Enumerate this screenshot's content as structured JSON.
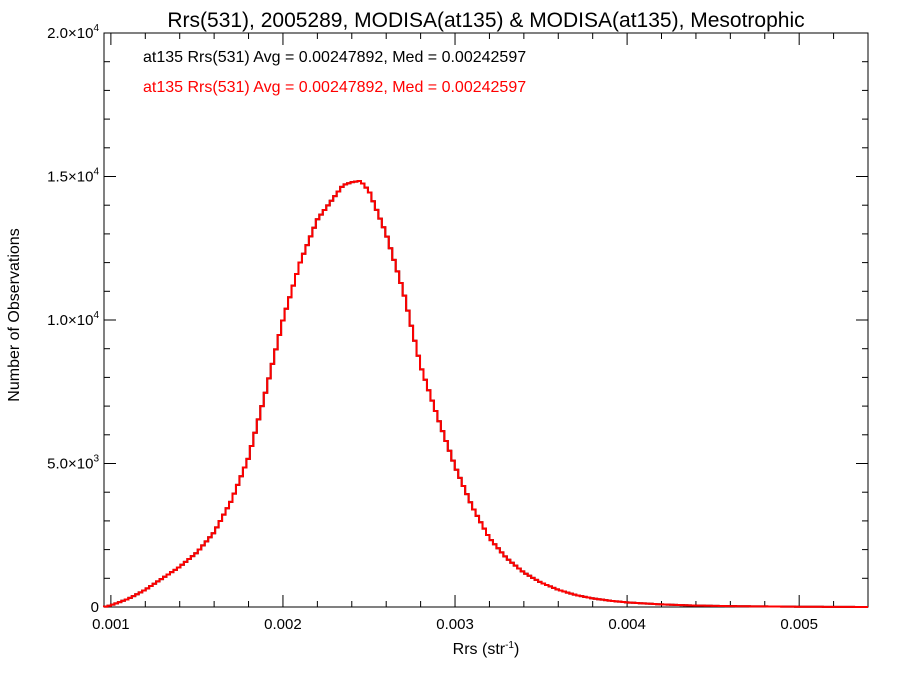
{
  "chart_data": {
    "type": "line",
    "title": "Rrs(531), 2005289, MODISA(at135) & MODISA(at135), Mesotrophic",
    "xlabel_main": "Rrs (str",
    "xlabel_sup": "-1",
    "xlabel_close": ")",
    "ylabel": "Number of Observations",
    "xlim": [
      0.00096,
      0.0054
    ],
    "ylim": [
      0,
      20000
    ],
    "x_ticks": [
      {
        "value": 0.001,
        "label": "0.001"
      },
      {
        "value": 0.002,
        "label": "0.002"
      },
      {
        "value": 0.003,
        "label": "0.003"
      },
      {
        "value": 0.004,
        "label": "0.004"
      },
      {
        "value": 0.005,
        "label": "0.005"
      }
    ],
    "y_ticks": [
      {
        "value": 0,
        "mant": "0",
        "exp": ""
      },
      {
        "value": 5000,
        "mant": "5.0×10",
        "exp": "3"
      },
      {
        "value": 10000,
        "mant": "1.0×10",
        "exp": "4"
      },
      {
        "value": 15000,
        "mant": "1.5×10",
        "exp": "4"
      },
      {
        "value": 20000,
        "mant": "2.0×10",
        "exp": "4"
      }
    ],
    "grid": false,
    "legend_position": "top-left",
    "series": [
      {
        "name": "at135 Rrs(531) Avg = 0.00247892, Med = 0.00242597",
        "color": "#000000",
        "x": [
          0.00096,
          0.001,
          0.0011,
          0.0012,
          0.0013,
          0.0014,
          0.0015,
          0.0016,
          0.0017,
          0.0018,
          0.0019,
          0.002,
          0.0021,
          0.0022,
          0.0023,
          0.00235,
          0.0024,
          0.00245,
          0.0025,
          0.0026,
          0.0027,
          0.0028,
          0.0029,
          0.003,
          0.0031,
          0.0032,
          0.0033,
          0.0034,
          0.0035,
          0.0036,
          0.0037,
          0.0038,
          0.0039,
          0.004,
          0.0042,
          0.0044,
          0.0046,
          0.0048,
          0.005,
          0.0052,
          0.0054
        ],
        "y": [
          0,
          60,
          280,
          600,
          1000,
          1400,
          1900,
          2600,
          3700,
          5200,
          7500,
          10000,
          12000,
          13500,
          14300,
          14700,
          14800,
          14850,
          14500,
          13000,
          11000,
          8400,
          6600,
          4900,
          3500,
          2400,
          1700,
          1200,
          850,
          600,
          420,
          300,
          220,
          160,
          90,
          50,
          30,
          20,
          10,
          5,
          0
        ]
      },
      {
        "name": "at135 Rrs(531) Avg = 0.00247892, Med = 0.00242597",
        "color": "#ff0000",
        "x": [
          0.00096,
          0.001,
          0.0011,
          0.0012,
          0.0013,
          0.0014,
          0.0015,
          0.0016,
          0.0017,
          0.0018,
          0.0019,
          0.002,
          0.0021,
          0.0022,
          0.0023,
          0.00235,
          0.0024,
          0.00245,
          0.0025,
          0.0026,
          0.0027,
          0.0028,
          0.0029,
          0.003,
          0.0031,
          0.0032,
          0.0033,
          0.0034,
          0.0035,
          0.0036,
          0.0037,
          0.0038,
          0.0039,
          0.004,
          0.0042,
          0.0044,
          0.0046,
          0.0048,
          0.005,
          0.0052,
          0.0054
        ],
        "y": [
          0,
          60,
          280,
          600,
          1000,
          1400,
          1900,
          2600,
          3700,
          5200,
          7500,
          10000,
          12000,
          13500,
          14300,
          14700,
          14800,
          14850,
          14500,
          13000,
          11000,
          8400,
          6600,
          4900,
          3500,
          2400,
          1700,
          1200,
          850,
          600,
          420,
          300,
          220,
          160,
          90,
          50,
          30,
          20,
          10,
          5,
          0
        ]
      }
    ]
  }
}
